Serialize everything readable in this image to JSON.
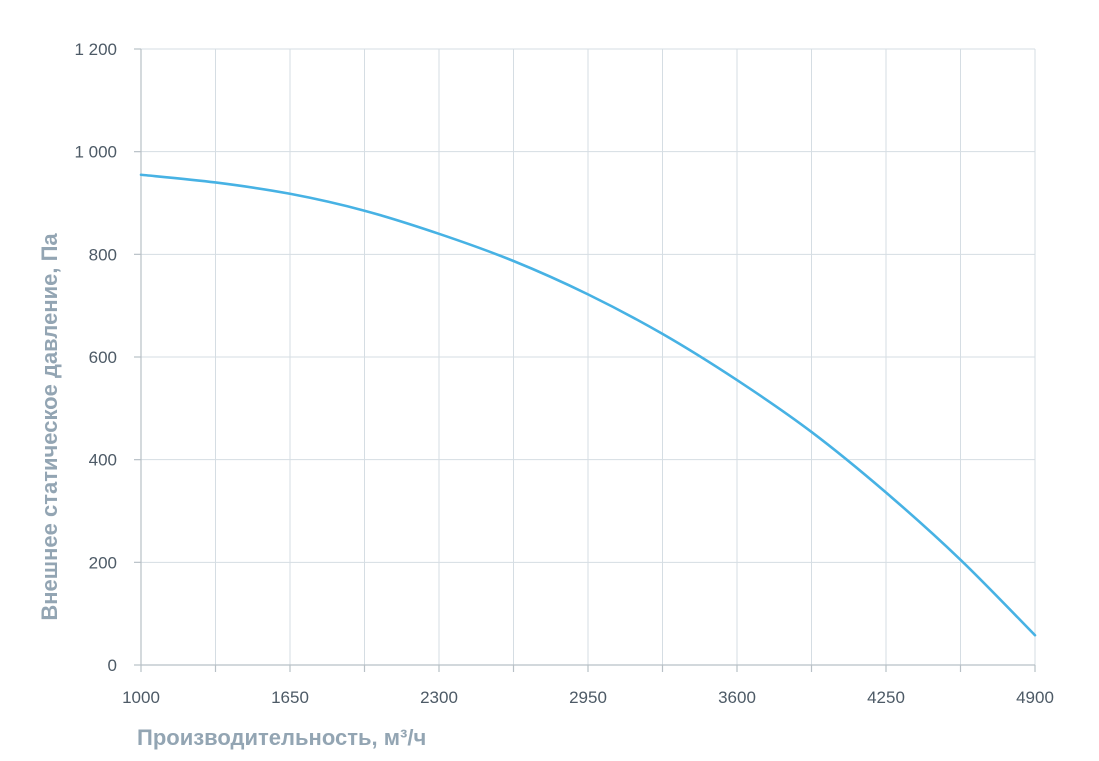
{
  "chart_data": {
    "type": "line",
    "xlabel": "Производительность, м³/ч",
    "ylabel": "Внешнее статическое давление, Па",
    "xlim": [
      1000,
      4900
    ],
    "ylim": [
      0,
      1200
    ],
    "x_ticks": [
      1000,
      1650,
      2300,
      2950,
      3600,
      4250,
      4900
    ],
    "x_tick_labels": [
      "1000",
      "1650",
      "2300",
      "2950",
      "3600",
      "4250",
      "4900"
    ],
    "y_ticks": [
      0,
      200,
      400,
      600,
      800,
      1000,
      1200
    ],
    "y_tick_labels": [
      "0",
      "200",
      "400",
      "600",
      "800",
      "1 000",
      "1 200"
    ],
    "x_minor_gridlines": [
      1325,
      1975,
      2625,
      3275,
      3925,
      4575
    ],
    "grid": true,
    "legend": "none",
    "series": [
      {
        "color": "#47b2e4",
        "x": [
          1000,
          1325,
          1650,
          1975,
          2300,
          2625,
          2950,
          3275,
          3600,
          3925,
          4250,
          4575,
          4900
        ],
        "y": [
          955,
          940,
          918,
          885,
          840,
          787,
          722,
          645,
          555,
          454,
          336,
          205,
          58
        ]
      }
    ]
  }
}
